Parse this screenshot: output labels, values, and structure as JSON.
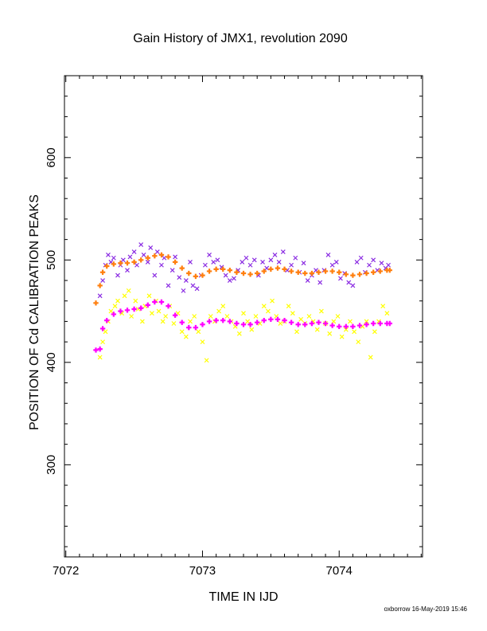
{
  "chart_data": {
    "type": "scatter",
    "title": "Gain History of JMX1, revolution 2090",
    "xlabel": "TIME IN IJD",
    "ylabel": "POSITION OF Cd CALIBRATION PEAKS",
    "xlim": [
      7071.99,
      7074.61
    ],
    "ylim": [
      210,
      680
    ],
    "xticks": [
      "7072",
      "7073",
      "7074"
    ],
    "yticks": [
      "300",
      "400",
      "500",
      "600"
    ],
    "grid": false,
    "footer": "oxborrow 16-May-2019 15:46",
    "series": [
      {
        "color": "#8a2be2",
        "marker": "x",
        "x": [
          7072.25,
          7072.27,
          7072.29,
          7072.31,
          7072.33,
          7072.35,
          7072.38,
          7072.4,
          7072.42,
          7072.45,
          7072.47,
          7072.5,
          7072.52,
          7072.55,
          7072.57,
          7072.6,
          7072.62,
          7072.65,
          7072.67,
          7072.7,
          7072.72,
          7072.75,
          7072.78,
          7072.8,
          7072.83,
          7072.86,
          7072.88,
          7072.91,
          7072.93,
          7072.96,
          7072.99,
          7073.02,
          7073.05,
          7073.08,
          7073.11,
          7073.14,
          7073.17,
          7073.2,
          7073.23,
          7073.26,
          7073.29,
          7073.32,
          7073.35,
          7073.38,
          7073.41,
          7073.44,
          7073.47,
          7073.5,
          7073.53,
          7073.56,
          7073.59,
          7073.62,
          7073.65,
          7073.68,
          7073.71,
          7073.74,
          7073.77,
          7073.8,
          7073.83,
          7073.86,
          7073.89,
          7073.92,
          7073.95,
          7073.98,
          7074.01,
          7074.04,
          7074.07,
          7074.1,
          7074.13,
          7074.16,
          7074.19,
          7074.22,
          7074.25,
          7074.28,
          7074.31,
          7074.34,
          7074.36
        ],
        "y": [
          465,
          480,
          495,
          505,
          498,
          502,
          485,
          495,
          500,
          490,
          503,
          508,
          495,
          515,
          505,
          498,
          512,
          485,
          508,
          495,
          502,
          475,
          490,
          503,
          483,
          470,
          480,
          498,
          475,
          472,
          485,
          495,
          505,
          498,
          500,
          493,
          485,
          480,
          482,
          490,
          498,
          502,
          495,
          500,
          485,
          498,
          492,
          500,
          505,
          498,
          508,
          490,
          495,
          502,
          488,
          497,
          480,
          485,
          490,
          478,
          490,
          505,
          495,
          498,
          482,
          487,
          478,
          475,
          498,
          502,
          488,
          495,
          500,
          490,
          497,
          492,
          495
        ]
      },
      {
        "color": "#ff7f0e",
        "marker": "+",
        "x": [
          7072.22,
          7072.25,
          7072.27,
          7072.3,
          7072.35,
          7072.4,
          7072.45,
          7072.5,
          7072.55,
          7072.6,
          7072.65,
          7072.7,
          7072.75,
          7072.8,
          7072.85,
          7072.9,
          7072.95,
          7073.0,
          7073.05,
          7073.1,
          7073.15,
          7073.2,
          7073.25,
          7073.3,
          7073.35,
          7073.4,
          7073.45,
          7073.5,
          7073.55,
          7073.6,
          7073.65,
          7073.7,
          7073.75,
          7073.8,
          7073.85,
          7073.9,
          7073.95,
          7074.0,
          7074.05,
          7074.1,
          7074.15,
          7074.2,
          7074.25,
          7074.3,
          7074.35,
          7074.37
        ],
        "y": [
          458,
          475,
          488,
          494,
          496,
          497,
          497,
          498,
          500,
          502,
          504,
          505,
          503,
          498,
          492,
          487,
          484,
          485,
          489,
          491,
          491,
          490,
          488,
          487,
          486,
          487,
          489,
          491,
          492,
          491,
          489,
          488,
          487,
          487,
          488,
          489,
          489,
          488,
          486,
          485,
          486,
          487,
          488,
          489,
          490,
          490
        ]
      },
      {
        "color": "#ffff00",
        "marker": "x",
        "x": [
          7072.25,
          7072.27,
          7072.29,
          7072.31,
          7072.33,
          7072.36,
          7072.38,
          7072.41,
          7072.43,
          7072.46,
          7072.48,
          7072.51,
          7072.53,
          7072.56,
          7072.58,
          7072.61,
          7072.63,
          7072.66,
          7072.68,
          7072.71,
          7072.73,
          7072.76,
          7072.79,
          7072.82,
          7072.85,
          7072.88,
          7072.91,
          7072.94,
          7072.97,
          7073.0,
          7073.03,
          7073.06,
          7073.09,
          7073.12,
          7073.15,
          7073.18,
          7073.21,
          7073.24,
          7073.27,
          7073.3,
          7073.33,
          7073.36,
          7073.39,
          7073.42,
          7073.45,
          7073.48,
          7073.51,
          7073.54,
          7073.57,
          7073.6,
          7073.63,
          7073.66,
          7073.69,
          7073.72,
          7073.75,
          7073.78,
          7073.81,
          7073.84,
          7073.87,
          7073.9,
          7073.93,
          7073.96,
          7073.99,
          7074.02,
          7074.05,
          7074.08,
          7074.11,
          7074.14,
          7074.17,
          7074.2,
          7074.23,
          7074.26,
          7074.29,
          7074.32,
          7074.35
        ],
        "y": [
          405,
          420,
          430,
          440,
          450,
          455,
          460,
          448,
          465,
          470,
          445,
          460,
          452,
          440,
          455,
          465,
          448,
          460,
          450,
          440,
          445,
          455,
          438,
          448,
          430,
          425,
          440,
          445,
          430,
          420,
          402,
          445,
          440,
          450,
          455,
          445,
          440,
          435,
          428,
          448,
          440,
          432,
          445,
          438,
          455,
          450,
          460,
          445,
          438,
          440,
          455,
          448,
          430,
          442,
          438,
          445,
          440,
          432,
          450,
          438,
          428,
          440,
          445,
          425,
          432,
          440,
          430,
          420,
          435,
          440,
          405,
          430,
          440,
          455,
          448
        ]
      },
      {
        "color": "#ff00ff",
        "marker": "+",
        "x": [
          7072.22,
          7072.25,
          7072.27,
          7072.3,
          7072.35,
          7072.4,
          7072.45,
          7072.5,
          7072.55,
          7072.6,
          7072.65,
          7072.7,
          7072.75,
          7072.8,
          7072.85,
          7072.9,
          7072.95,
          7073.0,
          7073.05,
          7073.1,
          7073.15,
          7073.2,
          7073.25,
          7073.3,
          7073.35,
          7073.4,
          7073.45,
          7073.5,
          7073.55,
          7073.6,
          7073.65,
          7073.7,
          7073.75,
          7073.8,
          7073.85,
          7073.9,
          7073.95,
          7074.0,
          7074.05,
          7074.1,
          7074.15,
          7074.2,
          7074.25,
          7074.3,
          7074.35,
          7074.37
        ],
        "y": [
          412,
          413,
          433,
          441,
          447,
          450,
          451,
          452,
          453,
          456,
          459,
          459,
          455,
          446,
          439,
          434,
          434,
          437,
          440,
          441,
          441,
          440,
          438,
          437,
          437,
          439,
          441,
          442,
          442,
          441,
          439,
          437,
          437,
          438,
          439,
          438,
          436,
          435,
          435,
          435,
          436,
          437,
          438,
          438,
          438,
          438
        ]
      }
    ]
  }
}
